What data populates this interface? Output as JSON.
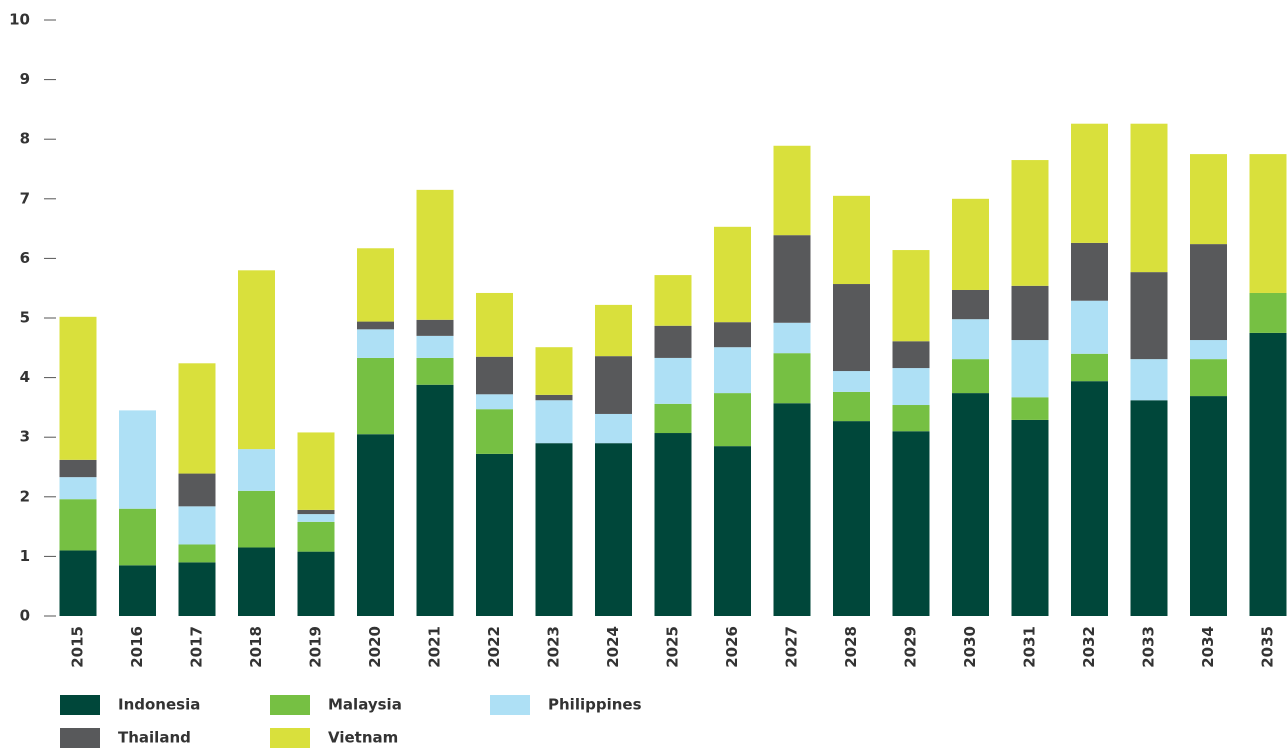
{
  "chart_data": {
    "type": "stacked_bar",
    "categories": [
      "2015",
      "2016",
      "2017",
      "2018",
      "2019",
      "2020",
      "2021",
      "2022",
      "2023",
      "2024",
      "2025",
      "2026",
      "2027",
      "2028",
      "2029",
      "2030",
      "2031",
      "2032",
      "2033",
      "2034",
      "2035"
    ],
    "series": [
      {
        "name": "Indonesia",
        "color": "#00473a",
        "values": [
          1.1,
          0.85,
          0.9,
          1.15,
          1.08,
          3.05,
          3.88,
          2.72,
          2.9,
          2.9,
          3.07,
          2.85,
          3.57,
          3.27,
          3.1,
          3.74,
          3.29,
          3.94,
          3.62,
          3.69,
          4.75
        ]
      },
      {
        "name": "Malaysia",
        "color": "#76c043",
        "values": [
          0.86,
          0.95,
          0.3,
          0.95,
          0.5,
          1.28,
          0.45,
          0.75,
          0,
          0,
          0.49,
          0.89,
          0.84,
          0.49,
          0.44,
          0.57,
          0.38,
          0.46,
          0,
          0.62,
          0.67
        ]
      },
      {
        "name": "Philippines",
        "color": "#aee0f5",
        "values": [
          0.37,
          1.65,
          0.64,
          0.7,
          0.13,
          0.48,
          0.37,
          0.25,
          0.72,
          0.49,
          0.77,
          0.77,
          0.51,
          0.35,
          0.62,
          0.67,
          0.96,
          0.89,
          0.69,
          0.32,
          0
        ]
      },
      {
        "name": "Thailand",
        "color": "#58595b",
        "values": [
          0.29,
          0,
          0.55,
          0,
          0.07,
          0.13,
          0.27,
          0.63,
          0.09,
          0.97,
          0.54,
          0.42,
          1.47,
          1.46,
          0.45,
          0.49,
          0.91,
          0.97,
          1.46,
          1.61,
          0
        ]
      },
      {
        "name": "Vietnam",
        "color": "#d9e03c",
        "values": [
          2.4,
          0,
          1.85,
          3.0,
          1.3,
          1.23,
          2.18,
          1.07,
          0.8,
          0.86,
          0.85,
          1.6,
          1.5,
          1.48,
          1.53,
          1.53,
          2.11,
          2.0,
          2.49,
          1.51,
          2.33
        ]
      }
    ],
    "ylim": [
      0,
      10
    ],
    "yticks": [
      0,
      1,
      2,
      3,
      4,
      5,
      6,
      7,
      8,
      9,
      10
    ],
    "grid": false
  }
}
